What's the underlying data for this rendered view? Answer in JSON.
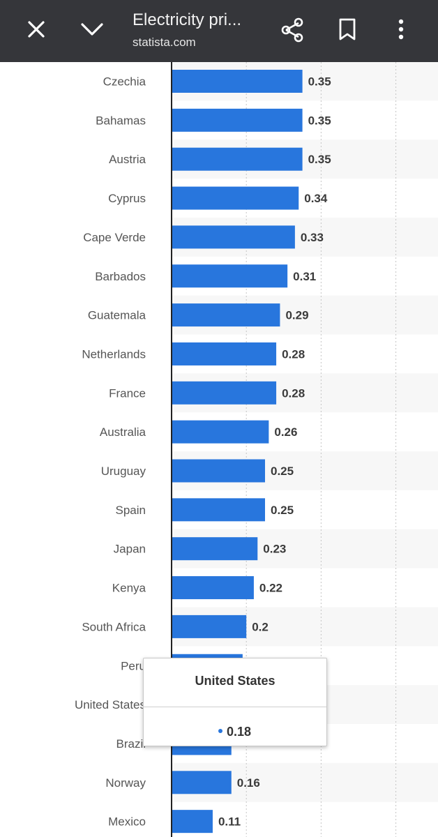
{
  "topbar": {
    "title": "Electricity pri...",
    "url": "statista.com"
  },
  "chart_data": {
    "type": "bar",
    "orientation": "horizontal",
    "categories": [
      "Czechia",
      "Bahamas",
      "Austria",
      "Cyprus",
      "Cape Verde",
      "Barbados",
      "Guatemala",
      "Netherlands",
      "France",
      "Australia",
      "Uruguay",
      "Spain",
      "Japan",
      "Kenya",
      "South Africa",
      "Peru",
      "United States",
      "Brazil",
      "Norway",
      "Mexico"
    ],
    "values": [
      0.35,
      0.35,
      0.35,
      0.34,
      0.33,
      0.31,
      0.29,
      0.28,
      0.28,
      0.26,
      0.25,
      0.25,
      0.23,
      0.22,
      0.2,
      0.19,
      0.18,
      0.16,
      0.16,
      0.11
    ],
    "value_labels": [
      "0.35",
      "0.35",
      "0.35",
      "0.34",
      "0.33",
      "0.31",
      "0.29",
      "0.28",
      "0.28",
      "0.26",
      "0.25",
      "0.25",
      "0.23",
      "0.22",
      "0.2",
      "",
      "",
      "",
      "0.16",
      "0.11"
    ],
    "xlim": [
      0,
      0.6
    ],
    "gridlines": [
      0.2,
      0.4,
      0.6
    ],
    "bar_color": "#2876dd",
    "stripe_color": "#f7f7f7"
  },
  "tooltip": {
    "title": "United States",
    "value": "0.18"
  }
}
